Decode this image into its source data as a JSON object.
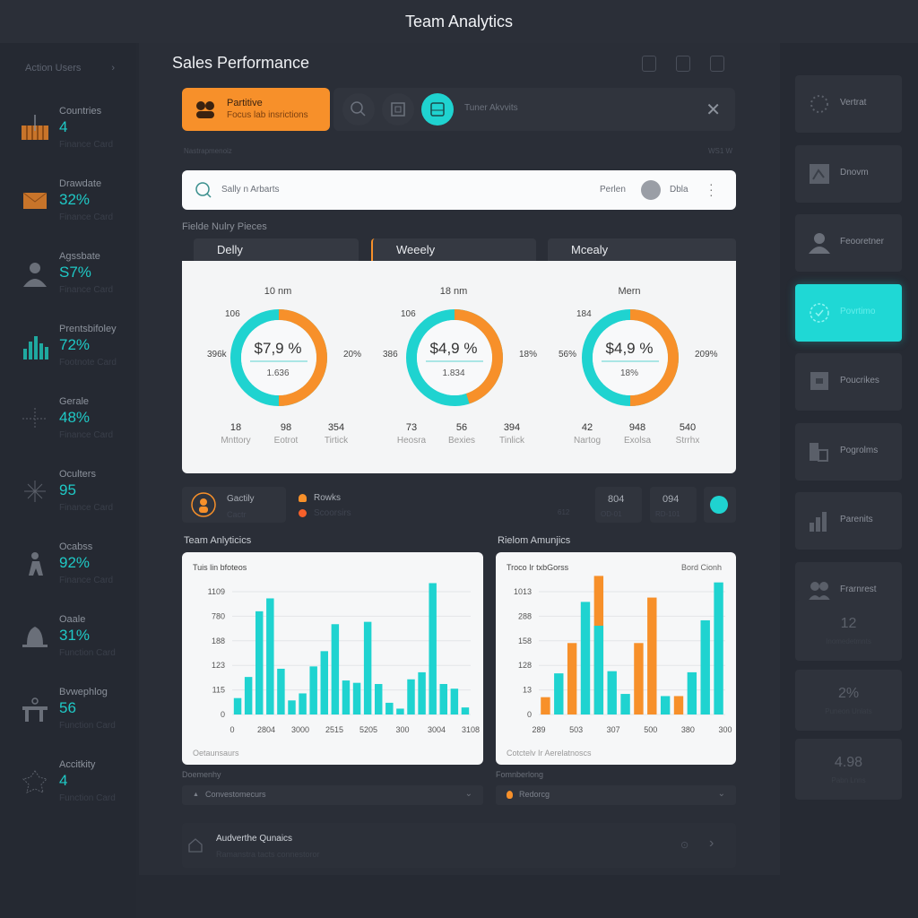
{
  "app": {
    "title": "Team Analytics"
  },
  "left_nav": {
    "header": "Action Users",
    "items": [
      {
        "label": "Countries",
        "value": "4",
        "sub": "Finance Card",
        "icon": "bar-crate-icon"
      },
      {
        "label": "Drawdate",
        "value": "32%",
        "sub": "Finance Card",
        "icon": "envelope-icon"
      },
      {
        "label": "Agssbate",
        "value": "S7%",
        "sub": "Finance Card",
        "icon": "user-icon"
      },
      {
        "label": "Prentsbifoley",
        "value": "72%",
        "sub": "Footnote Card",
        "icon": "bar-chart-icon"
      },
      {
        "label": "Gerale",
        "value": "48%",
        "sub": "Finance Card",
        "icon": "crosshair-icon"
      },
      {
        "label": "Oculters",
        "value": "95",
        "sub": "Finance Card",
        "icon": "sparkle-icon"
      },
      {
        "label": "Ocabss",
        "value": "92%",
        "sub": "Finance Card",
        "icon": "figure-icon"
      },
      {
        "label": "Oaale",
        "value": "31%",
        "sub": "Function Card",
        "icon": "bell-icon"
      },
      {
        "label": "Bvwephlog",
        "value": "56",
        "sub": "Function Card",
        "icon": "desk-icon"
      },
      {
        "label": "Accitkity",
        "value": "4",
        "sub": "Function Card",
        "icon": "leaf-icon"
      }
    ]
  },
  "main": {
    "page_title": "Sales Performance",
    "promo": {
      "title": "Partitive",
      "subtitle": "Focus lab insrictions"
    },
    "toolbar": {
      "label": "Tuner Akvvits"
    },
    "small_caption_left": "Nastrapmenoiz",
    "small_caption_right": "WS1 W",
    "search": {
      "placeholder": "Sally n Arbarts",
      "filter_label": "Perlen",
      "user_label": "Dbla"
    },
    "section_label": "Fielde Nulry Pieces",
    "tabs": [
      {
        "label": "Delly"
      },
      {
        "label": "Weeely"
      },
      {
        "label": "Mcealy"
      }
    ],
    "mini_row": {
      "profile": {
        "title": "Gactily",
        "sub": "Cactr"
      },
      "legend": [
        {
          "label": "Rowks"
        },
        {
          "label": "Scoorsirs"
        }
      ],
      "stats": [
        {
          "value": "",
          "sub": "612"
        },
        {
          "value": "804",
          "sub": "OD-01"
        },
        {
          "value": "094",
          "sub": "RD-101"
        }
      ]
    },
    "chart_titles": {
      "left": "Team Anlyticics",
      "right": "Rielom Amunjics"
    },
    "dropdowns": [
      {
        "label": "Doemenhy",
        "value": "Convestomecurs"
      },
      {
        "label": "Fomnberlong",
        "value": "Redorcg"
      }
    ],
    "bottom": {
      "title": "Audverthe Qunaics",
      "sub": "Ramanstra tacts connestoror"
    }
  },
  "right_nav": {
    "items": [
      {
        "label": "Vertrat",
        "icon": "loading-icon"
      },
      {
        "label": "Dnovm",
        "icon": "image-icon"
      },
      {
        "label": "Feooretner",
        "icon": "person-icon"
      },
      {
        "label": "Povrtimo",
        "icon": "check-circle-icon",
        "active": true
      },
      {
        "label": "Poucrikes",
        "icon": "board-icon"
      },
      {
        "label": "Pogrolms",
        "icon": "devices-icon"
      },
      {
        "label": "Parenits",
        "icon": "chart-icon"
      },
      {
        "label": "Frarnrest",
        "icon": "group-icon"
      }
    ],
    "stats": [
      {
        "value": "12",
        "sub": "Inomedetmnts"
      },
      {
        "value": "2%",
        "sub": "Puneon Unlats"
      },
      {
        "value": "4.98",
        "sub": "Pabn Lnns"
      }
    ]
  },
  "colors": {
    "accent_teal": "#1fd3d0",
    "accent_orange": "#f7902a",
    "bg": "#262a33"
  },
  "chart_data": [
    {
      "type": "pie",
      "title": "10 nm",
      "center_value": "$7,9 %",
      "center_sub": "1.636",
      "slices": [
        {
          "name": "teal",
          "value": 50
        },
        {
          "name": "orange",
          "value": 50
        }
      ],
      "outer_labels": {
        "top_left": "106",
        "left": "396k",
        "right": "20%"
      },
      "footer": [
        {
          "value": "18",
          "label": "Mnttory"
        },
        {
          "value": "98",
          "label": "Eotrot"
        },
        {
          "value": "354",
          "label": "Tirtick"
        }
      ]
    },
    {
      "type": "pie",
      "title": "18 nm",
      "center_value": "$4,9 %",
      "center_sub": "1.834",
      "slices": [
        {
          "name": "teal",
          "value": 55
        },
        {
          "name": "orange",
          "value": 45
        }
      ],
      "outer_labels": {
        "top_left": "106",
        "left": "386",
        "right": "18%"
      },
      "footer": [
        {
          "value": "73",
          "label": "Heosra"
        },
        {
          "value": "56",
          "label": "Bexies"
        },
        {
          "value": "394",
          "label": "Tinlick"
        }
      ]
    },
    {
      "type": "pie",
      "title": "Mern",
      "center_value": "$4,9 %",
      "center_sub": "18%",
      "slices": [
        {
          "name": "teal",
          "value": 50
        },
        {
          "name": "orange",
          "value": 50
        }
      ],
      "outer_labels": {
        "top_left": "184",
        "left": "56%",
        "right": "209%"
      },
      "footer": [
        {
          "value": "42",
          "label": "Nartog"
        },
        {
          "value": "948",
          "label": "Exolsa"
        },
        {
          "value": "540",
          "label": "Strrhx"
        }
      ]
    },
    {
      "type": "bar",
      "title": "Tuis lin bfoteos",
      "footer": "Oetaunsaurs",
      "yticks": [
        "0",
        "115",
        "123",
        "188",
        "780",
        "1109"
      ],
      "xticks": [
        "0",
        "2804",
        "3000",
        "2515",
        "5205",
        "300",
        "3004",
        "3108"
      ],
      "series": [
        {
          "name": "teal",
          "values": [
            0.7,
            1.6,
            4.4,
            4.95,
            1.95,
            0.6,
            0.9,
            2.05,
            2.7,
            3.85,
            1.45,
            1.35,
            3.95,
            1.3,
            0.5,
            0.25,
            1.5,
            1.8,
            5.6,
            1.3,
            1.1,
            0.3
          ]
        }
      ],
      "ylim": [
        0,
        6
      ],
      "grid": true
    },
    {
      "type": "bar",
      "title": "Troco Ir txbGorss",
      "legend_label": "Bord Cionh",
      "footer": "Cotctelv Ir Aerelatnoscs",
      "yticks": [
        "0",
        "13",
        "128",
        "158",
        "288",
        "1013"
      ],
      "xticks": [
        "289",
        "503",
        "307",
        "500",
        "380",
        "300"
      ],
      "series": [
        {
          "name": "orange",
          "values": [
            0.8,
            0,
            3.3,
            0,
            6.4,
            0,
            0,
            3.3,
            5.4,
            0,
            0.85,
            0,
            0,
            0
          ]
        },
        {
          "name": "teal",
          "values": [
            0,
            1.9,
            0,
            5.2,
            4.1,
            2.0,
            0.95,
            0,
            0,
            0.85,
            0,
            1.95,
            4.35,
            6.1
          ]
        }
      ],
      "ylim": [
        0,
        6.5
      ],
      "grid": true
    }
  ]
}
